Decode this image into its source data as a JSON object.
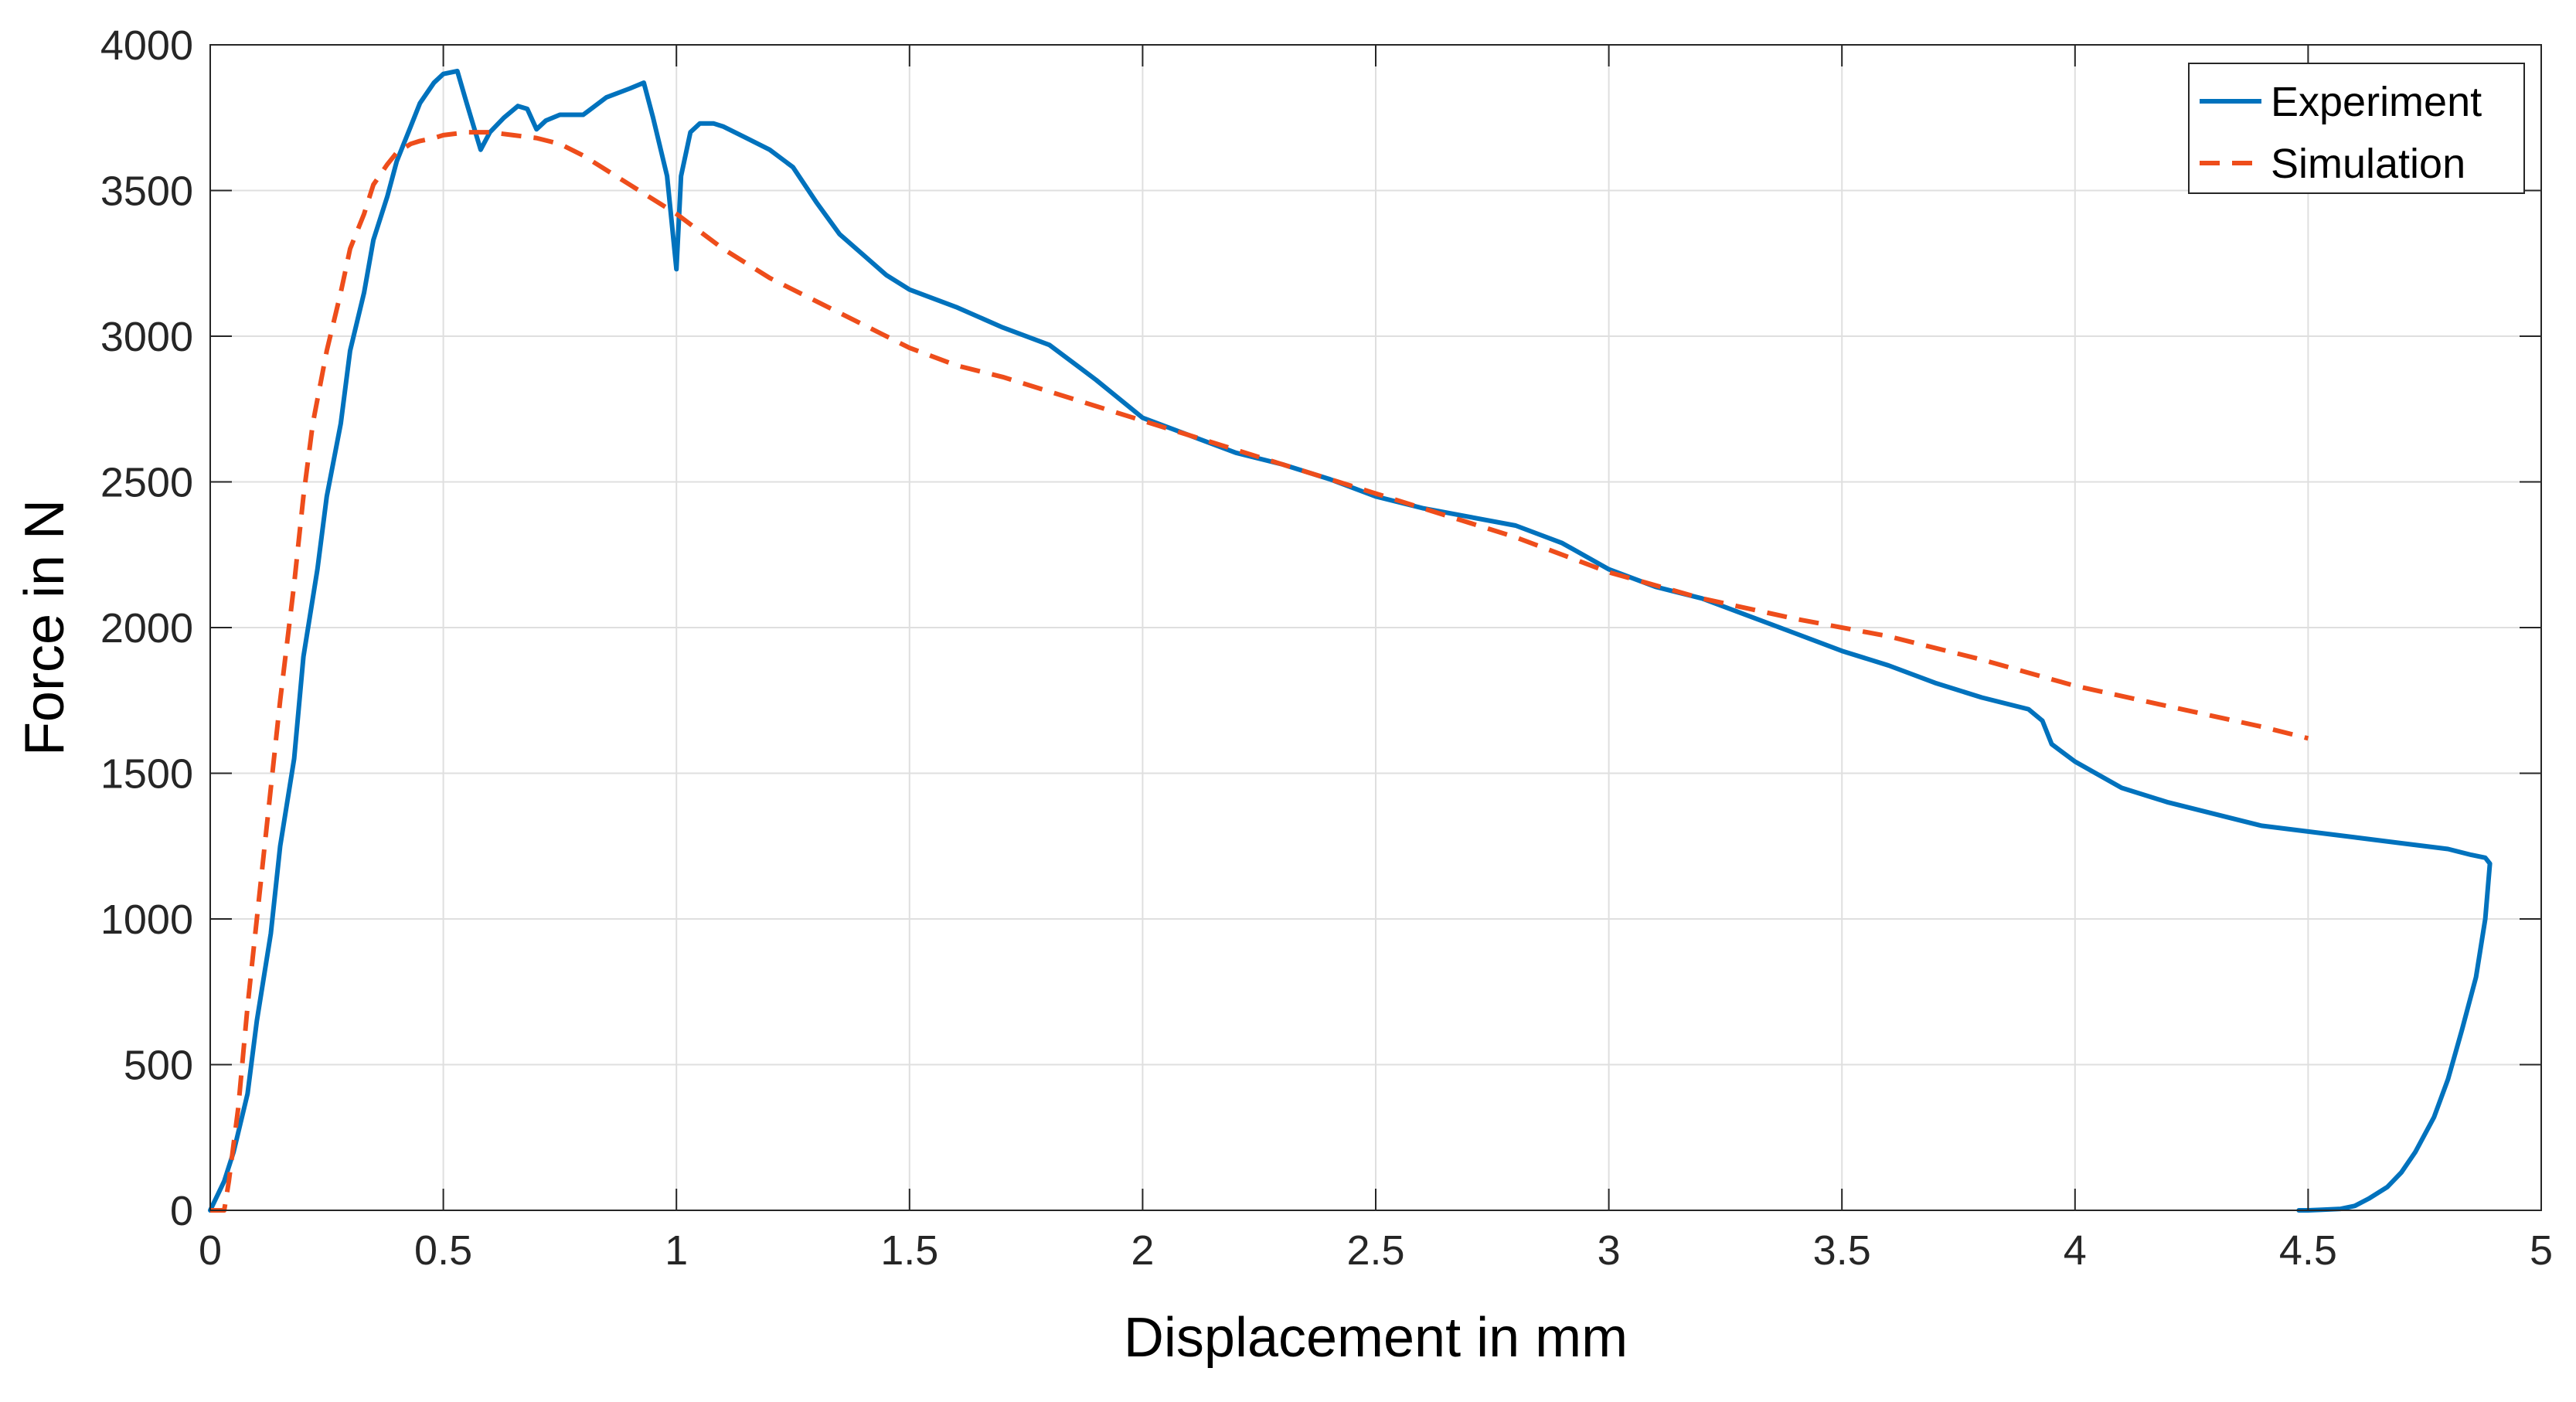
{
  "chart_data": {
    "type": "line",
    "title": "",
    "xlabel": "Displacement in mm",
    "ylabel": "Force in N",
    "xlim": [
      0,
      5
    ],
    "ylim": [
      0,
      4000
    ],
    "xticks": [
      0,
      0.5,
      1,
      1.5,
      2,
      2.5,
      3,
      3.5,
      4,
      4.5,
      5
    ],
    "xtick_labels": [
      "0",
      "0.5",
      "1",
      "1.5",
      "2",
      "2.5",
      "3",
      "3.5",
      "4",
      "4.5",
      "5"
    ],
    "yticks": [
      0,
      500,
      1000,
      1500,
      2000,
      2500,
      3000,
      3500,
      4000
    ],
    "ytick_labels": [
      "0",
      "500",
      "1000",
      "1500",
      "2000",
      "2500",
      "3000",
      "3500",
      "4000"
    ],
    "grid": true,
    "legend_position": "top-right",
    "series": [
      {
        "name": "Experiment",
        "color": "#0072BD",
        "style": "solid",
        "x": [
          0,
          0.03,
          0.05,
          0.08,
          0.1,
          0.13,
          0.15,
          0.18,
          0.2,
          0.23,
          0.25,
          0.28,
          0.3,
          0.33,
          0.35,
          0.38,
          0.4,
          0.43,
          0.45,
          0.48,
          0.5,
          0.53,
          0.55,
          0.58,
          0.6,
          0.63,
          0.66,
          0.68,
          0.7,
          0.72,
          0.75,
          0.8,
          0.85,
          0.9,
          0.93,
          0.95,
          0.98,
          1.0,
          1.01,
          1.03,
          1.05,
          1.08,
          1.1,
          1.15,
          1.2,
          1.25,
          1.3,
          1.35,
          1.4,
          1.45,
          1.5,
          1.6,
          1.7,
          1.8,
          1.9,
          2.0,
          2.1,
          2.2,
          2.3,
          2.4,
          2.5,
          2.6,
          2.7,
          2.8,
          2.9,
          3.0,
          3.1,
          3.2,
          3.3,
          3.4,
          3.5,
          3.6,
          3.7,
          3.8,
          3.9,
          3.93,
          3.95,
          4.0,
          4.1,
          4.2,
          4.3,
          4.4,
          4.5,
          4.6,
          4.7,
          4.8,
          4.85,
          4.88,
          4.89,
          4.88,
          4.86,
          4.83,
          4.8,
          4.77,
          4.73,
          4.7,
          4.67,
          4.63,
          4.6,
          4.57,
          4.53,
          4.5,
          4.48
        ],
        "y": [
          0,
          100,
          200,
          400,
          650,
          950,
          1250,
          1550,
          1900,
          2200,
          2450,
          2700,
          2950,
          3150,
          3330,
          3480,
          3600,
          3720,
          3800,
          3870,
          3900,
          3910,
          3800,
          3640,
          3700,
          3750,
          3790,
          3780,
          3710,
          3740,
          3760,
          3760,
          3820,
          3850,
          3870,
          3750,
          3550,
          3230,
          3550,
          3700,
          3730,
          3730,
          3720,
          3680,
          3640,
          3580,
          3460,
          3350,
          3280,
          3210,
          3160,
          3100,
          3030,
          2970,
          2850,
          2720,
          2660,
          2600,
          2560,
          2510,
          2450,
          2410,
          2380,
          2350,
          2290,
          2200,
          2140,
          2100,
          2040,
          1980,
          1920,
          1870,
          1810,
          1760,
          1720,
          1680,
          1600,
          1540,
          1450,
          1400,
          1360,
          1320,
          1300,
          1280,
          1260,
          1240,
          1220,
          1210,
          1190,
          1000,
          800,
          620,
          450,
          320,
          200,
          130,
          80,
          40,
          15,
          5,
          2,
          0,
          0
        ]
      },
      {
        "name": "Simulation",
        "color": "#EE4D1B",
        "style": "dashed",
        "x": [
          0,
          0.03,
          0.04,
          0.06,
          0.08,
          0.1,
          0.12,
          0.15,
          0.18,
          0.2,
          0.22,
          0.25,
          0.28,
          0.3,
          0.33,
          0.35,
          0.38,
          0.4,
          0.43,
          0.45,
          0.48,
          0.5,
          0.55,
          0.6,
          0.65,
          0.7,
          0.75,
          0.8,
          0.9,
          1.0,
          1.1,
          1.2,
          1.3,
          1.4,
          1.5,
          1.6,
          1.7,
          1.8,
          1.9,
          2.0,
          2.2,
          2.4,
          2.6,
          2.8,
          3.0,
          3.2,
          3.4,
          3.6,
          3.8,
          4.0,
          4.2,
          4.4,
          4.5
        ],
        "y": [
          0,
          0,
          100,
          350,
          700,
          1000,
          1300,
          1750,
          2150,
          2450,
          2700,
          2950,
          3150,
          3300,
          3420,
          3520,
          3590,
          3630,
          3660,
          3670,
          3680,
          3690,
          3700,
          3700,
          3690,
          3680,
          3660,
          3620,
          3520,
          3420,
          3300,
          3200,
          3120,
          3040,
          2960,
          2900,
          2860,
          2810,
          2760,
          2710,
          2610,
          2510,
          2410,
          2310,
          2190,
          2100,
          2030,
          1970,
          1890,
          1800,
          1730,
          1660,
          1620
        ]
      }
    ]
  }
}
